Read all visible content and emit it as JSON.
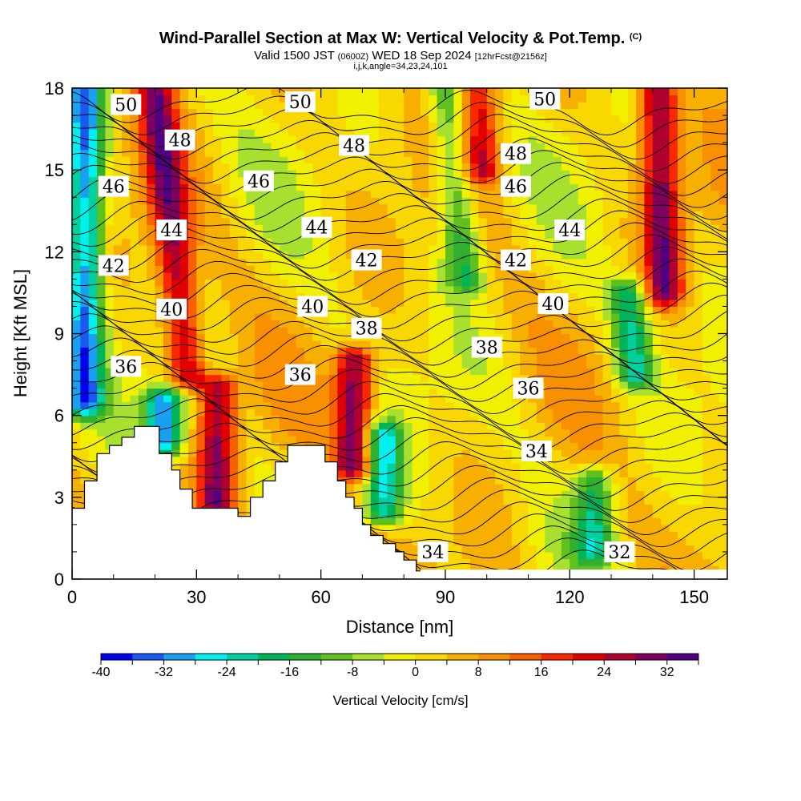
{
  "title_main": "Wind-Parallel Section at Max W: Vertical Velocity & Pot.Temp.",
  "title_mark": "(C)",
  "subtitle_valid": "Valid 1500 JST",
  "subtitle_utc": "(0600Z)",
  "subtitle_date": "WED 18 Sep 2024",
  "subtitle_fcst": "[12hrFcst@2156z]",
  "subtitle_indices": "i,j,k,angle=34,23,24,101",
  "chart_data": {
    "type": "heatmap",
    "xlabel": "Distance [nm]",
    "ylabel": "Height [Kft MSL]",
    "xlim": [
      0,
      158
    ],
    "ylim": [
      0,
      18
    ],
    "x_ticks": [
      0,
      30,
      60,
      90,
      120,
      150
    ],
    "y_ticks": [
      0,
      3,
      6,
      9,
      12,
      15,
      18
    ],
    "colorbar": {
      "label": "Vertical Velocity [cm/s]",
      "min": -40,
      "max": 36,
      "step": 4,
      "tick_values": [
        -40,
        -32,
        -24,
        -16,
        -8,
        0,
        8,
        16,
        24,
        32
      ],
      "colors": [
        "#0000f0",
        "#1a58f0",
        "#1aa0f0",
        "#00f0f0",
        "#00d0a0",
        "#00b45a",
        "#30b030",
        "#60c020",
        "#a8e030",
        "#f0f000",
        "#f8d800",
        "#f8b000",
        "#f89000",
        "#f86000",
        "#f82800",
        "#e00000",
        "#b00030",
        "#800060",
        "#500080"
      ]
    },
    "updraft_axes": [
      {
        "x": [
          20,
          28
        ],
        "y": [
          18,
          7.5
        ],
        "w": 26
      },
      {
        "x": [
          35,
          35
        ],
        "y": [
          2.8,
          7.0
        ],
        "w": 27
      },
      {
        "x": [
          68,
          68
        ],
        "y": [
          4.2,
          8.0
        ],
        "w": 30
      },
      {
        "x": [
          141,
          143
        ],
        "y": [
          18,
          10.5
        ],
        "w": 28
      },
      {
        "x": [
          98,
          99
        ],
        "y": [
          18,
          15
        ],
        "w": 20
      }
    ],
    "downdraft_axes": [
      {
        "x": [
          3,
          3
        ],
        "y": [
          18,
          6.5
        ],
        "w": -34
      },
      {
        "x": [
          22,
          22
        ],
        "y": [
          6.5,
          5.0
        ],
        "w": -32
      },
      {
        "x": [
          75,
          75
        ],
        "y": [
          5.2,
          2.5
        ],
        "w": -26
      },
      {
        "x": [
          90,
          95
        ],
        "y": [
          18,
          11
        ],
        "w": -18
      },
      {
        "x": [
          134,
          136
        ],
        "y": [
          10.5,
          7.5
        ],
        "w": -22
      },
      {
        "x": [
          126,
          126
        ],
        "y": [
          3.6,
          1.2
        ],
        "w": -20
      }
    ],
    "theta_contours": {
      "interval": 1,
      "labeled": [
        {
          "value": "50",
          "x": 13,
          "y": 17.4
        },
        {
          "value": "50",
          "x": 55,
          "y": 17.5
        },
        {
          "value": "50",
          "x": 114,
          "y": 17.6
        },
        {
          "value": "48",
          "x": 26,
          "y": 16.1
        },
        {
          "value": "48",
          "x": 68,
          "y": 15.9
        },
        {
          "value": "48",
          "x": 107,
          "y": 15.6
        },
        {
          "value": "46",
          "x": 10,
          "y": 14.4
        },
        {
          "value": "46",
          "x": 45,
          "y": 14.6
        },
        {
          "value": "46",
          "x": 107,
          "y": 14.4
        },
        {
          "value": "44",
          "x": 24,
          "y": 12.8
        },
        {
          "value": "44",
          "x": 59,
          "y": 12.9
        },
        {
          "value": "44",
          "x": 120,
          "y": 12.8
        },
        {
          "value": "42",
          "x": 10,
          "y": 11.5
        },
        {
          "value": "42",
          "x": 71,
          "y": 11.7
        },
        {
          "value": "42",
          "x": 107,
          "y": 11.7
        },
        {
          "value": "40",
          "x": 24,
          "y": 9.9
        },
        {
          "value": "40",
          "x": 58,
          "y": 10.0
        },
        {
          "value": "40",
          "x": 116,
          "y": 10.1
        },
        {
          "value": "38",
          "x": 71,
          "y": 9.2
        },
        {
          "value": "38",
          "x": 100,
          "y": 8.5
        },
        {
          "value": "36",
          "x": 13,
          "y": 7.8
        },
        {
          "value": "36",
          "x": 55,
          "y": 7.5
        },
        {
          "value": "36",
          "x": 110,
          "y": 7.0
        },
        {
          "value": "34",
          "x": 112,
          "y": 4.7
        },
        {
          "value": "34",
          "x": 87,
          "y": 1.0
        },
        {
          "value": "32",
          "x": 132,
          "y": 1.0
        }
      ]
    },
    "terrain_kft": [
      [
        0,
        2.6
      ],
      [
        3,
        3.6
      ],
      [
        6,
        4.6
      ],
      [
        9,
        4.9
      ],
      [
        12,
        5.2
      ],
      [
        15,
        5.6
      ],
      [
        18,
        5.6
      ],
      [
        21,
        4.6
      ],
      [
        24,
        4.0
      ],
      [
        26,
        3.3
      ],
      [
        29,
        2.6
      ],
      [
        32,
        2.6
      ],
      [
        35,
        2.6
      ],
      [
        38,
        2.6
      ],
      [
        40,
        2.3
      ],
      [
        43,
        3.0
      ],
      [
        46,
        3.6
      ],
      [
        49,
        4.3
      ],
      [
        52,
        4.9
      ],
      [
        55,
        4.9
      ],
      [
        58,
        4.9
      ],
      [
        61,
        4.3
      ],
      [
        64,
        3.6
      ],
      [
        66,
        3.0
      ],
      [
        68,
        2.6
      ],
      [
        70,
        2.0
      ],
      [
        72,
        1.6
      ],
      [
        75,
        1.3
      ],
      [
        78,
        1.0
      ],
      [
        80,
        0.7
      ],
      [
        83,
        0.3
      ],
      [
        85,
        0.3
      ]
    ]
  }
}
